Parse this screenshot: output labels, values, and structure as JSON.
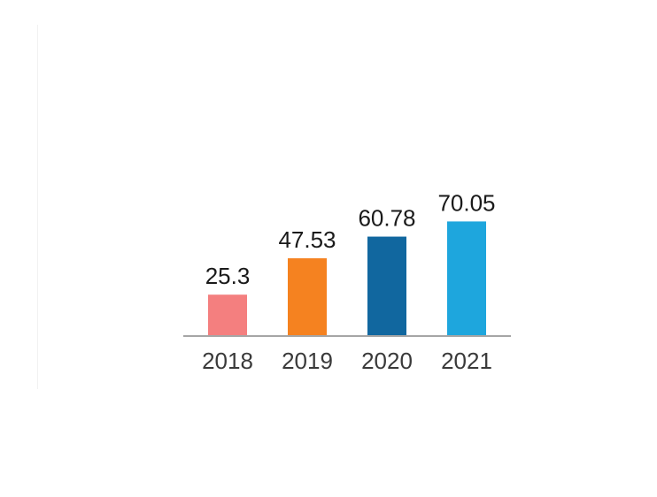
{
  "chart_data": {
    "type": "bar",
    "title": "",
    "xlabel": "",
    "ylabel": "",
    "categories": [
      "2018",
      "2019",
      "2020",
      "2021"
    ],
    "values": [
      25.3,
      47.53,
      60.78,
      70.05
    ],
    "value_labels": [
      "25.3",
      "47.53",
      "60.78",
      "70.05"
    ],
    "colors": [
      "#f47f7f",
      "#f58220",
      "#11679f",
      "#1ea6dd"
    ],
    "ylim": [
      0,
      90
    ],
    "grid": false,
    "legend": "none"
  }
}
